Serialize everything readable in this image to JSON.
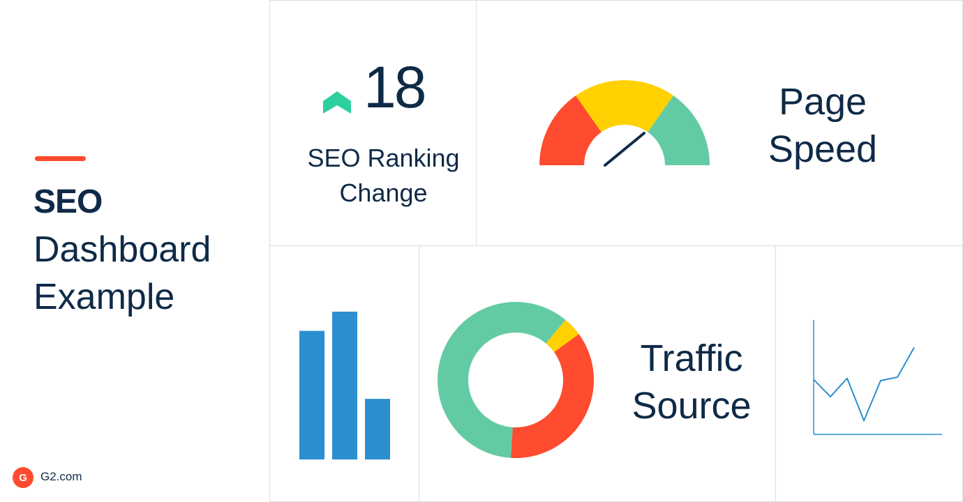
{
  "left": {
    "title_bold": "SEO",
    "title_line_1": "Dashboard",
    "title_line_2": "Example",
    "logo_text": "G2.com",
    "logo_glyph": "G"
  },
  "ranking": {
    "value": "18",
    "label_line_1": "SEO Ranking",
    "label_line_2": "Change",
    "icon": "up-chevron-icon",
    "icon_color": "#2ecf9f"
  },
  "page_speed": {
    "title_line_1": "Page",
    "title_line_2": "Speed",
    "gauge_colors": [
      "#ff4b2f",
      "#ffd100",
      "#63cba3"
    ],
    "needle_level": 0.75
  },
  "bars": {
    "values": [
      0.87,
      1.0,
      0.41
    ],
    "color": "#2b8fd0"
  },
  "traffic": {
    "title_line_1": "Traffic",
    "title_line_2": "Source",
    "segments": [
      {
        "color": "#63cba3",
        "share": 0.11
      },
      {
        "color": "#ffd100",
        "share": 0.04
      },
      {
        "color": "#ff4b2f",
        "share": 0.36
      },
      {
        "color": "#63cba3",
        "share": 0.49
      }
    ]
  },
  "trend": {
    "values": [
      0.48,
      0.33,
      0.49,
      0.12,
      0.47,
      0.5,
      0.76
    ],
    "color": "#2b8fd0"
  }
}
